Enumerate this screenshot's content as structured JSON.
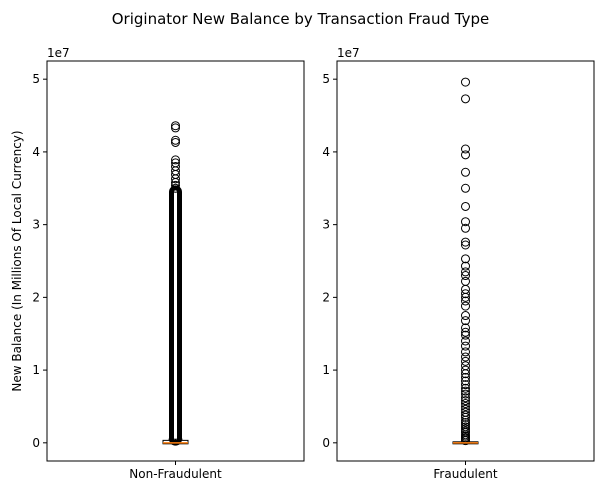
{
  "chart_data": {
    "title": "Originator New Balance by Transaction Fraud Type",
    "ylabel": "New Balance (In Millions Of Local Currency)",
    "y_offset_label": "1e7",
    "ylim": [
      -0.25,
      5.25
    ],
    "yticks": [
      0,
      1,
      2,
      3,
      4,
      5
    ],
    "panels": [
      {
        "type": "box",
        "category": "Non-Fraudulent",
        "box": {
          "q1": 0.0,
          "median": 0.0,
          "q3": 0.02,
          "whisker_low": 0.0,
          "whisker_high": 0.05
        },
        "outlier_band": [
          0.05,
          3.45
        ],
        "outliers": [
          4.36,
          4.33,
          4.16,
          4.13,
          3.89,
          3.85,
          3.8,
          3.74,
          3.69,
          3.63,
          3.58,
          3.54,
          3.5
        ]
      },
      {
        "type": "box",
        "category": "Fraudulent",
        "box": {
          "q1": 0.0,
          "median": 0.0,
          "q3": 0.0,
          "whisker_low": 0.0,
          "whisker_high": 0.0
        },
        "outliers": [
          4.96,
          4.73,
          4.04,
          3.96,
          3.72,
          3.5,
          3.25,
          3.04,
          2.95,
          2.76,
          2.72,
          2.53,
          2.43,
          2.35,
          2.3,
          2.22,
          2.11,
          2.05,
          2.0,
          1.95,
          1.88,
          1.75,
          1.68,
          1.58,
          1.52,
          1.48,
          1.4,
          1.33,
          1.25,
          1.18,
          1.12,
          1.06,
          1.0,
          0.95,
          0.9,
          0.85,
          0.8,
          0.75,
          0.71,
          0.67,
          0.62,
          0.58,
          0.54,
          0.5,
          0.46,
          0.42,
          0.38,
          0.35,
          0.31,
          0.28,
          0.25,
          0.22,
          0.19,
          0.16,
          0.14,
          0.11,
          0.09,
          0.07,
          0.05,
          0.03
        ]
      }
    ]
  },
  "colors": {
    "median": "#ff7f0e",
    "mark": "#000000"
  }
}
